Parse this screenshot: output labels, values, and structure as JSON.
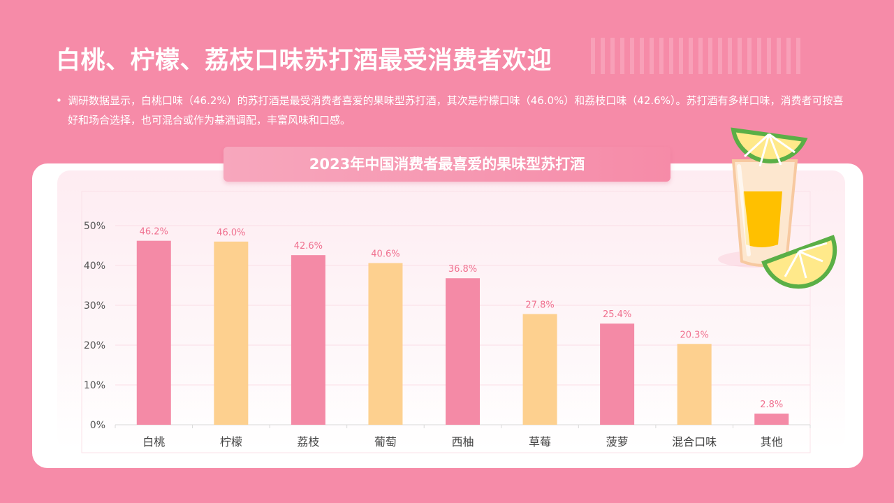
{
  "title": "白桃、柠檬、荔枝口味苏打酒最受消费者欢迎",
  "description": "调研数据显示，白桃口味（46.2%）的苏打酒是最受消费者喜爱的果味型苏打酒，其次是柠檬口味（46.0%）和荔枝口味（42.6%）。苏打酒有多样口味，消费者可按喜好和场合选择，也可混合或作为基酒调配，丰富风味和口感。",
  "bullet": "•",
  "colors": {
    "background": "#f68ba8",
    "bar_pink": "#f48aa6",
    "bar_orange": "#fdd08f",
    "data_label": "#f0708f",
    "axis_text": "#555555"
  },
  "decoration": {
    "icon": "lemon-drink-icon"
  },
  "chart_data": {
    "type": "bar",
    "title": "2023年中国消费者最喜爱的果味型苏打酒",
    "categories": [
      "白桃",
      "柠檬",
      "荔枝",
      "葡萄",
      "西柚",
      "草莓",
      "菠萝",
      "混合口味",
      "其他"
    ],
    "values": [
      46.2,
      46.0,
      42.6,
      40.6,
      36.8,
      27.8,
      25.4,
      20.3,
      2.8
    ],
    "value_labels": [
      "46.2%",
      "46.0%",
      "42.6%",
      "40.6%",
      "36.8%",
      "27.8%",
      "25.4%",
      "20.3%",
      "2.8%"
    ],
    "bar_colors": [
      "#f48aa6",
      "#fdd08f",
      "#f48aa6",
      "#fdd08f",
      "#f48aa6",
      "#fdd08f",
      "#f48aa6",
      "#fdd08f",
      "#f48aa6"
    ],
    "ylim": [
      0,
      50
    ],
    "yticks": [
      0,
      10,
      20,
      30,
      40,
      50
    ],
    "ytick_labels": [
      "0%",
      "10%",
      "20%",
      "30%",
      "40%",
      "50%"
    ],
    "xlabel": "",
    "ylabel": "",
    "grid": true,
    "legend": "none"
  }
}
